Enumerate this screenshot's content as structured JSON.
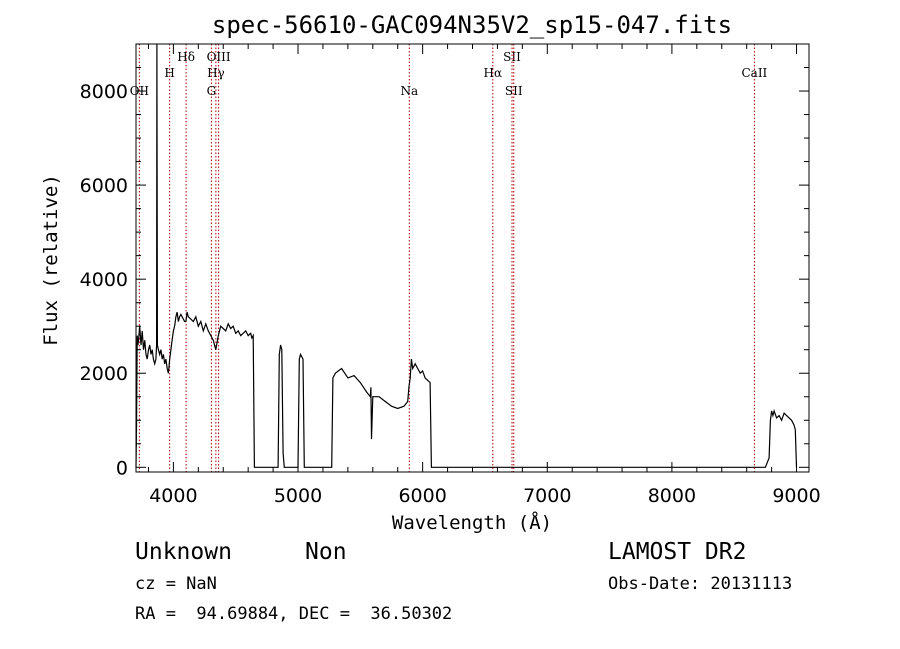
{
  "chart_data": {
    "type": "line",
    "title": "spec-56610-GAC094N35V2_sp15-047.fits",
    "xlabel": "Wavelength (Å)",
    "ylabel": "Flux (relative)",
    "xlim": [
      3700,
      9100
    ],
    "ylim": [
      -100,
      9000
    ],
    "xticks": [
      4000,
      5000,
      6000,
      7000,
      8000,
      9000
    ],
    "yticks": [
      0,
      2000,
      4000,
      6000,
      8000
    ],
    "grid": false,
    "line_color": "#000000",
    "marker_color": "#aa0000",
    "series": [
      {
        "x": [
          3700,
          3705,
          3710,
          3715,
          3720,
          3730,
          3740,
          3750,
          3760,
          3770,
          3780,
          3790,
          3800,
          3810,
          3820,
          3830,
          3840,
          3850,
          3860,
          3865,
          3868,
          3872,
          3880,
          3890,
          3900,
          3910,
          3920,
          3930,
          3940,
          3950,
          3960,
          3970,
          3980,
          3990,
          4000,
          4010,
          4020,
          4030,
          4040,
          4050,
          4060,
          4070,
          4080,
          4090,
          4100,
          4110,
          4120,
          4140,
          4160,
          4180,
          4200,
          4220,
          4240,
          4260,
          4280,
          4300,
          4320,
          4330,
          4340,
          4360,
          4380,
          4400,
          4420,
          4440,
          4460,
          4480,
          4500,
          4520,
          4540,
          4560,
          4580,
          4600,
          4620,
          4630,
          4640,
          4650,
          4700,
          4750,
          4800,
          4840,
          4850,
          4860,
          4870,
          4880,
          4890,
          4900,
          4950,
          5000,
          5010,
          5020,
          5030,
          5040,
          5050,
          5100,
          5200,
          5250,
          5270,
          5280,
          5300,
          5350,
          5400,
          5450,
          5500,
          5550,
          5580,
          5585,
          5590,
          5600,
          5650,
          5700,
          5750,
          5800,
          5850,
          5880,
          5890,
          5900,
          5910,
          5920,
          5940,
          5960,
          5980,
          6000,
          6020,
          6040,
          6060,
          6070,
          6080,
          6100,
          6200,
          6300,
          6400,
          6500,
          6600,
          6700,
          6800,
          6900,
          7000,
          7100,
          7200,
          7300,
          7400,
          7500,
          7600,
          7700,
          7800,
          7900,
          8000,
          8100,
          8200,
          8300,
          8400,
          8500,
          8600,
          8700,
          8750,
          8780,
          8790,
          8800,
          8810,
          8820,
          8840,
          8860,
          8880,
          8900,
          8920,
          8940,
          8960,
          8980,
          8990,
          9000
        ],
        "y": [
          0,
          1000,
          2800,
          2600,
          2700,
          3000,
          2600,
          2900,
          2500,
          2700,
          2400,
          2300,
          2500,
          2600,
          2400,
          2500,
          2300,
          2200,
          2300,
          2600,
          9000,
          2600,
          2500,
          2400,
          2500,
          2300,
          2400,
          2200,
          2300,
          2100,
          2000,
          2300,
          2500,
          2700,
          2900,
          3000,
          3200,
          3300,
          3100,
          3200,
          3250,
          3200,
          3150,
          3100,
          3100,
          3300,
          3200,
          3150,
          3100,
          3200,
          3000,
          3100,
          2900,
          3050,
          2900,
          2800,
          2700,
          2600,
          2500,
          2800,
          3000,
          2950,
          2900,
          3050,
          2950,
          3000,
          2850,
          2900,
          2800,
          2850,
          2900,
          2800,
          2850,
          2750,
          2800,
          0,
          0,
          0,
          0,
          0,
          2400,
          2600,
          2500,
          300,
          0,
          0,
          0,
          0,
          2300,
          2400,
          2350,
          2300,
          0,
          0,
          0,
          0,
          0,
          1900,
          2000,
          2100,
          1900,
          1950,
          1800,
          1600,
          1500,
          1700,
          600,
          1500,
          1500,
          1400,
          1300,
          1250,
          1300,
          1400,
          1700,
          1900,
          2300,
          2100,
          2200,
          2100,
          2000,
          2050,
          1900,
          1850,
          1800,
          0,
          0,
          0,
          0,
          0,
          0,
          0,
          0,
          0,
          0,
          0,
          0,
          0,
          0,
          0,
          0,
          0,
          0,
          0,
          0,
          0,
          0,
          0,
          0,
          0,
          0,
          0,
          0,
          0,
          0,
          200,
          1000,
          1200,
          1100,
          1200,
          1050,
          1100,
          1000,
          1150,
          1100,
          1050,
          1000,
          900,
          800,
          0
        ]
      }
    ],
    "annotations": [
      {
        "label": "OII",
        "x": 3727,
        "row": 2
      },
      {
        "label": "H",
        "x": 3970,
        "row": 1
      },
      {
        "label": "Hδ",
        "x": 4102,
        "row": 0
      },
      {
        "label": "OIII",
        "x": 4363,
        "row": 0
      },
      {
        "label": "Hγ",
        "x": 4341,
        "row": 1
      },
      {
        "label": "G",
        "x": 4305,
        "row": 2
      },
      {
        "label": "Na",
        "x": 5893,
        "row": 2
      },
      {
        "label": "Hα",
        "x": 6563,
        "row": 1
      },
      {
        "label": "SII",
        "x": 6717,
        "row": 0
      },
      {
        "label": "SII",
        "x": 6731,
        "row": 2
      },
      {
        "label": "CaII",
        "x": 8662,
        "row": 1
      }
    ]
  },
  "info": {
    "object_class": "Unknown",
    "object_subclass": "Non",
    "survey": "LAMOST DR2",
    "cz": "cz = NaN",
    "obs_date": "Obs-Date: 20131113",
    "coords": "RA =  94.69884, DEC =  36.50302"
  }
}
